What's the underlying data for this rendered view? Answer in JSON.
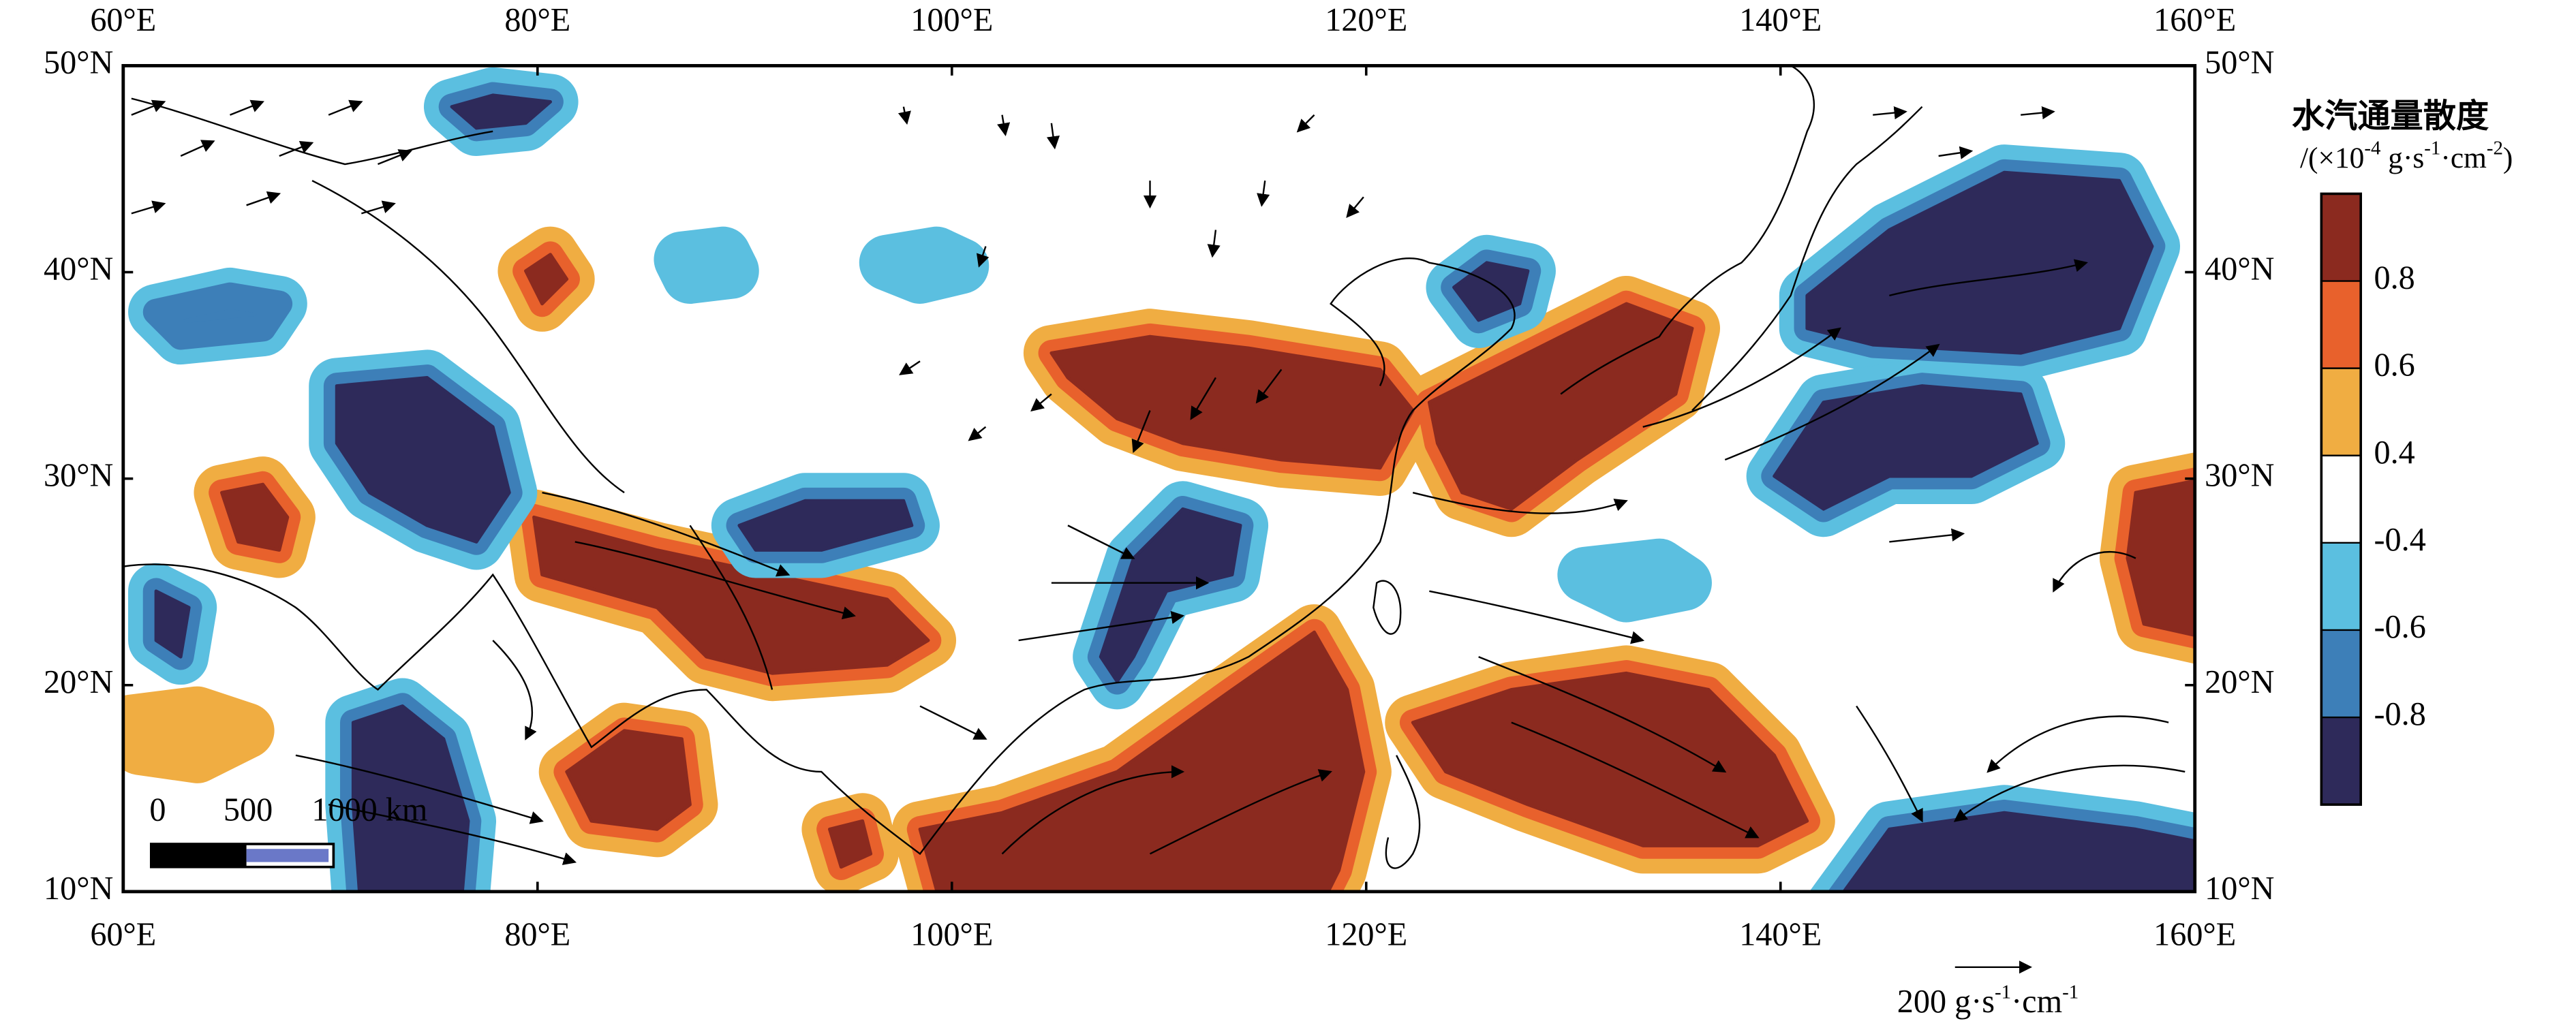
{
  "map": {
    "x_labels": [
      "60°E",
      "80°E",
      "100°E",
      "120°E",
      "140°E",
      "160°E"
    ],
    "y_labels": [
      "50°N",
      "40°N",
      "30°N",
      "20°N",
      "10°N"
    ],
    "legend": {
      "title": "水汽通量散度",
      "unit": [
        "/(×10",
        "-4",
        " g·s",
        "-1",
        "·cm",
        "-2",
        ")"
      ],
      "ticks": [
        "0.8",
        "0.6",
        "0.4",
        "-0.4",
        "-0.6",
        "-0.8"
      ],
      "colors": [
        "#8b2a1f",
        "#e8612c",
        "#f0ad42",
        "#ffffff",
        "#5bbfe0",
        "#3d7fb8",
        "#2e2a5a"
      ]
    },
    "scale_bar": [
      "0",
      "500",
      "1000 km"
    ],
    "reference_vector": [
      "200 g·s",
      "-1",
      "·cm",
      "-1"
    ]
  }
}
